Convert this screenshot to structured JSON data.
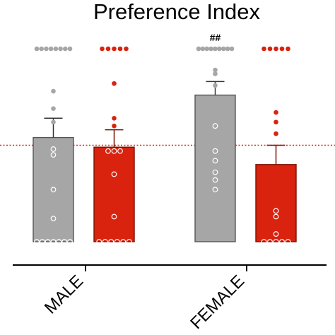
{
  "chart_data": {
    "type": "bar",
    "title": "Preference Index",
    "xlabel": "",
    "ylabel": "",
    "categories": [
      "MALE",
      "FEMALE"
    ],
    "ylim": [
      0,
      1
    ],
    "reference_line": 0.5,
    "grid": false,
    "legend": "none",
    "annotations": [
      {
        "category": "FEMALE",
        "group": 0,
        "text": "##"
      }
    ],
    "series": [
      {
        "color": "#a6a6a6",
        "edge_color": "#555555",
        "error_color": "#333333",
        "point_color": "#a6a6a6",
        "values": [
          0.54,
          0.76
        ],
        "errors": [
          0.1,
          0.07
        ],
        "points": [
          [
            0,
            0,
            0,
            0,
            0,
            0,
            0,
            0.12,
            0.27,
            0.45,
            0.48,
            0.62,
            0.69,
            0.78,
            1,
            1,
            1,
            1,
            1,
            1,
            1,
            1
          ],
          [
            0.27,
            0.32,
            0.36,
            0.42,
            0.47,
            0.6,
            0.81,
            0.87,
            0.89,
            1,
            1,
            1,
            1,
            1,
            1,
            1,
            1,
            1
          ]
        ]
      },
      {
        "color": "#d9230f",
        "edge_color": "#7a1000",
        "error_color": "#7a1000",
        "point_color": "#d9230f",
        "values": [
          0.49,
          0.4
        ],
        "errors": [
          0.09,
          0.1
        ],
        "points": [
          [
            0,
            0,
            0,
            0,
            0,
            0,
            0.13,
            0.35,
            0.47,
            0.47,
            0.47,
            0.6,
            0.64,
            0.82,
            1,
            1,
            1,
            1,
            1
          ],
          [
            0,
            0,
            0,
            0,
            0,
            0.04,
            0.13,
            0.16,
            0.56,
            0.62,
            0.67,
            1,
            1,
            1,
            1,
            1
          ]
        ]
      }
    ]
  }
}
